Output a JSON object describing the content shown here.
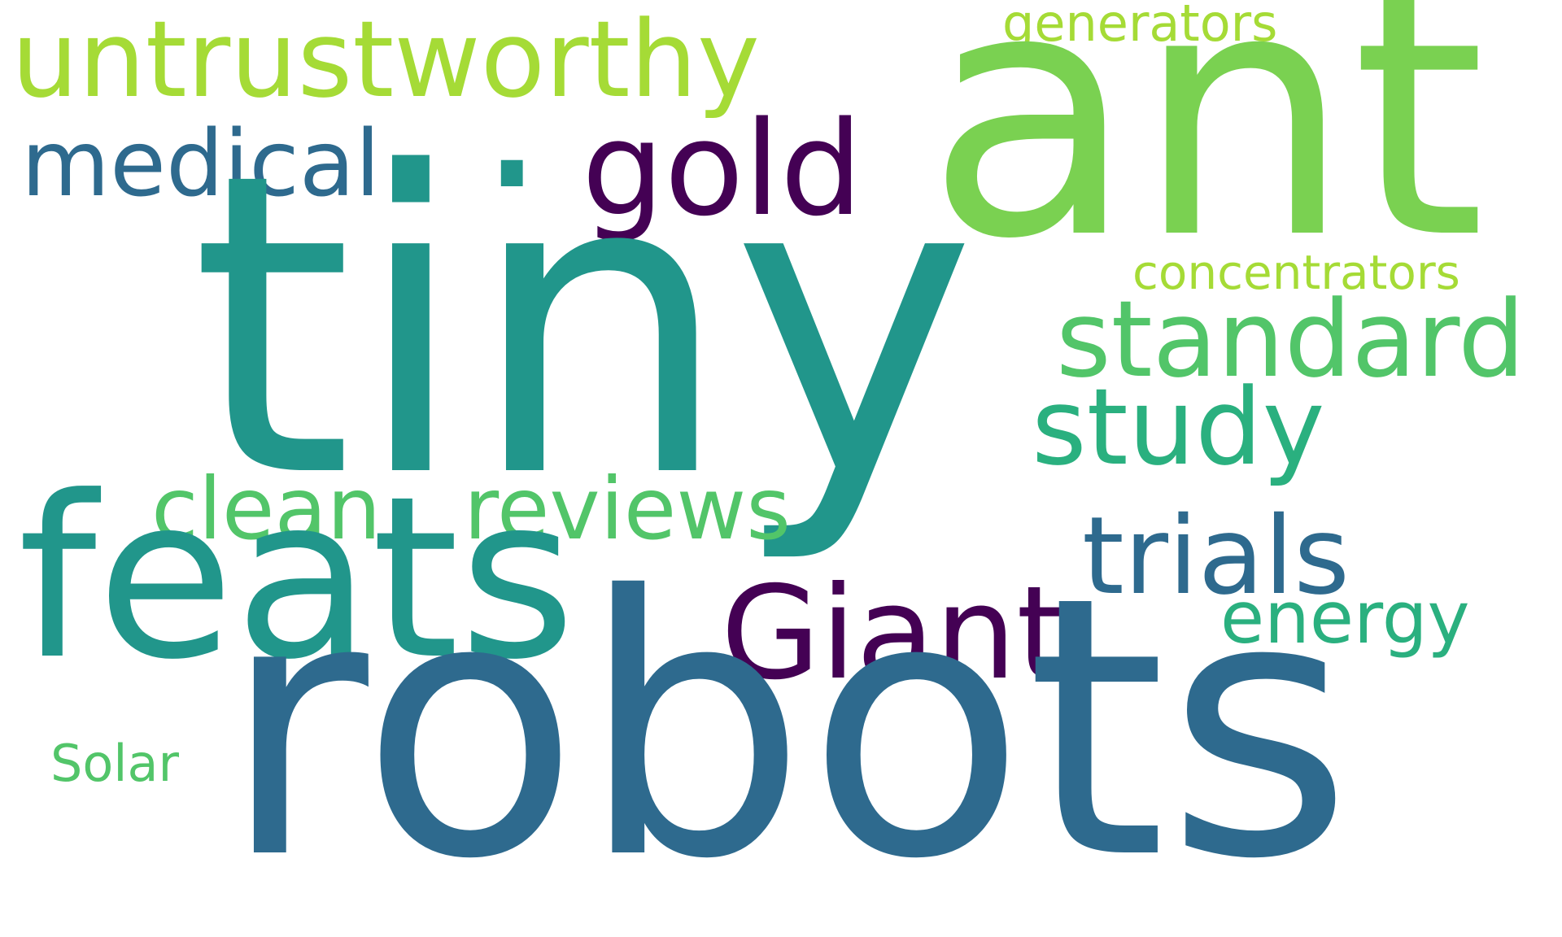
{
  "words": {
    "tiny": {
      "text": "tiny",
      "color": "#21968b"
    },
    "robots": {
      "text": "robots",
      "color": "#2e6a8e"
    },
    "ant": {
      "text": "ant",
      "color": "#7ad151"
    },
    "feats": {
      "text": "feats",
      "color": "#21968b"
    },
    "untrustworthy": {
      "text": "untrustworthy",
      "color": "#a5db36"
    },
    "dot": {
      "text": ".",
      "color": "#21968b"
    },
    "gold": {
      "text": "gold",
      "color": "#440154"
    },
    "medical": {
      "text": "medical",
      "color": "#2e6a8e"
    },
    "generators": {
      "text": "generators",
      "color": "#a5db36"
    },
    "concentrators": {
      "text": "concentrators",
      "color": "#a5db36"
    },
    "standard": {
      "text": "standard",
      "color": "#52c569"
    },
    "study": {
      "text": "study",
      "color": "#2ab07f"
    },
    "clean": {
      "text": "clean",
      "color": "#52c569"
    },
    "reviews": {
      "text": "reviews",
      "color": "#52c569"
    },
    "trials": {
      "text": "trials",
      "color": "#2e6a8e"
    },
    "giant": {
      "text": "Giant",
      "color": "#440154"
    },
    "energy": {
      "text": "energy",
      "color": "#2ab07f"
    },
    "solar": {
      "text": "Solar",
      "color": "#52c569"
    }
  }
}
